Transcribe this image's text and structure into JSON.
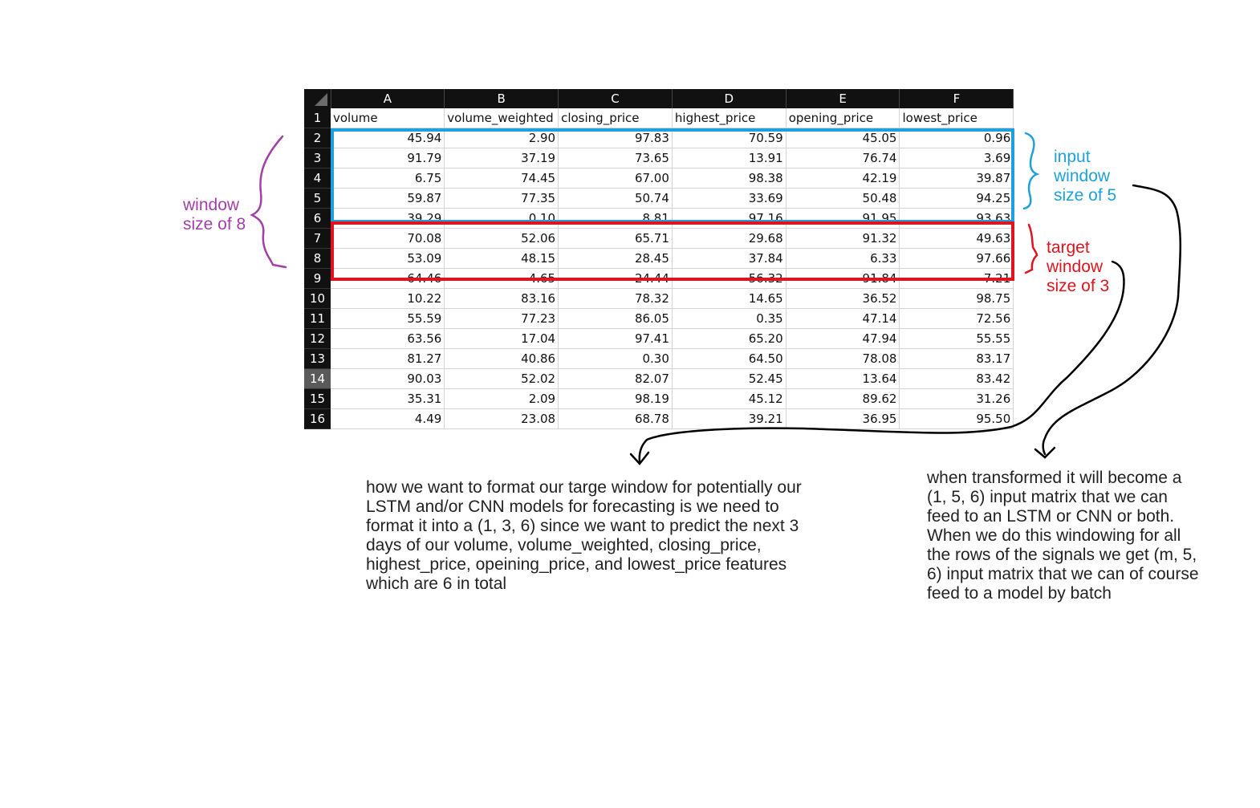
{
  "sheet": {
    "column_letters": [
      "A",
      "B",
      "C",
      "D",
      "E",
      "F"
    ],
    "row_numbers": [
      "1",
      "2",
      "3",
      "4",
      "5",
      "6",
      "7",
      "8",
      "9",
      "10",
      "11",
      "12",
      "13",
      "14",
      "15",
      "16"
    ],
    "selected_row": "14",
    "headers": [
      "volume",
      "volume_weighted",
      "closing_price",
      "highest_price",
      "opening_price",
      "lowest_price"
    ],
    "rows": [
      [
        "45.94",
        "2.90",
        "97.83",
        "70.59",
        "45.05",
        "0.96"
      ],
      [
        "91.79",
        "37.19",
        "73.65",
        "13.91",
        "76.74",
        "3.69"
      ],
      [
        "6.75",
        "74.45",
        "67.00",
        "98.38",
        "42.19",
        "39.87"
      ],
      [
        "59.87",
        "77.35",
        "50.74",
        "33.69",
        "50.48",
        "94.25"
      ],
      [
        "39.29",
        "0.10",
        "8.81",
        "97.16",
        "91.95",
        "93.63"
      ],
      [
        "70.08",
        "52.06",
        "65.71",
        "29.68",
        "91.32",
        "49.63"
      ],
      [
        "53.09",
        "48.15",
        "28.45",
        "37.84",
        "6.33",
        "97.66"
      ],
      [
        "64.46",
        "4.65",
        "24.44",
        "56.32",
        "91.84",
        "7.21"
      ],
      [
        "10.22",
        "83.16",
        "78.32",
        "14.65",
        "36.52",
        "98.75"
      ],
      [
        "55.59",
        "77.23",
        "86.05",
        "0.35",
        "47.14",
        "72.56"
      ],
      [
        "63.56",
        "17.04",
        "97.41",
        "65.20",
        "47.94",
        "55.55"
      ],
      [
        "81.27",
        "40.86",
        "0.30",
        "64.50",
        "78.08",
        "83.17"
      ],
      [
        "90.03",
        "52.02",
        "82.07",
        "52.45",
        "13.64",
        "83.42"
      ],
      [
        "35.31",
        "2.09",
        "98.19",
        "45.12",
        "89.62",
        "31.26"
      ],
      [
        "4.49",
        "23.08",
        "68.78",
        "39.21",
        "36.95",
        "95.50"
      ]
    ]
  },
  "annotations": {
    "window_label": "window\nsize of 8",
    "input_label": "input\nwindow\nsize of 5",
    "target_label": "target\nwindow\nsize of 3",
    "note_target": "how we want to format our targe window for potentially our LSTM and/or CNN models for forecasting is we need to format it into a (1, 3, 6) since we want to predict the next 3 days of our volume, volume_weighted, closing_price, highest_price, opeining_price, and lowest_price features which are 6 in total",
    "note_input": "when transformed it will become a (1, 5, 6) input matrix that we can feed to an LSTM or CNN or both. When we do this windowing for all the rows of the signals we get (m, 5, 6) input matrix that we can of course feed to a model by batch"
  },
  "colors": {
    "input_window": "#1fa0dc",
    "target_window": "#e0141e",
    "window_8": "#a23fa8",
    "ink": "#000000",
    "header_bg": "#111111"
  }
}
